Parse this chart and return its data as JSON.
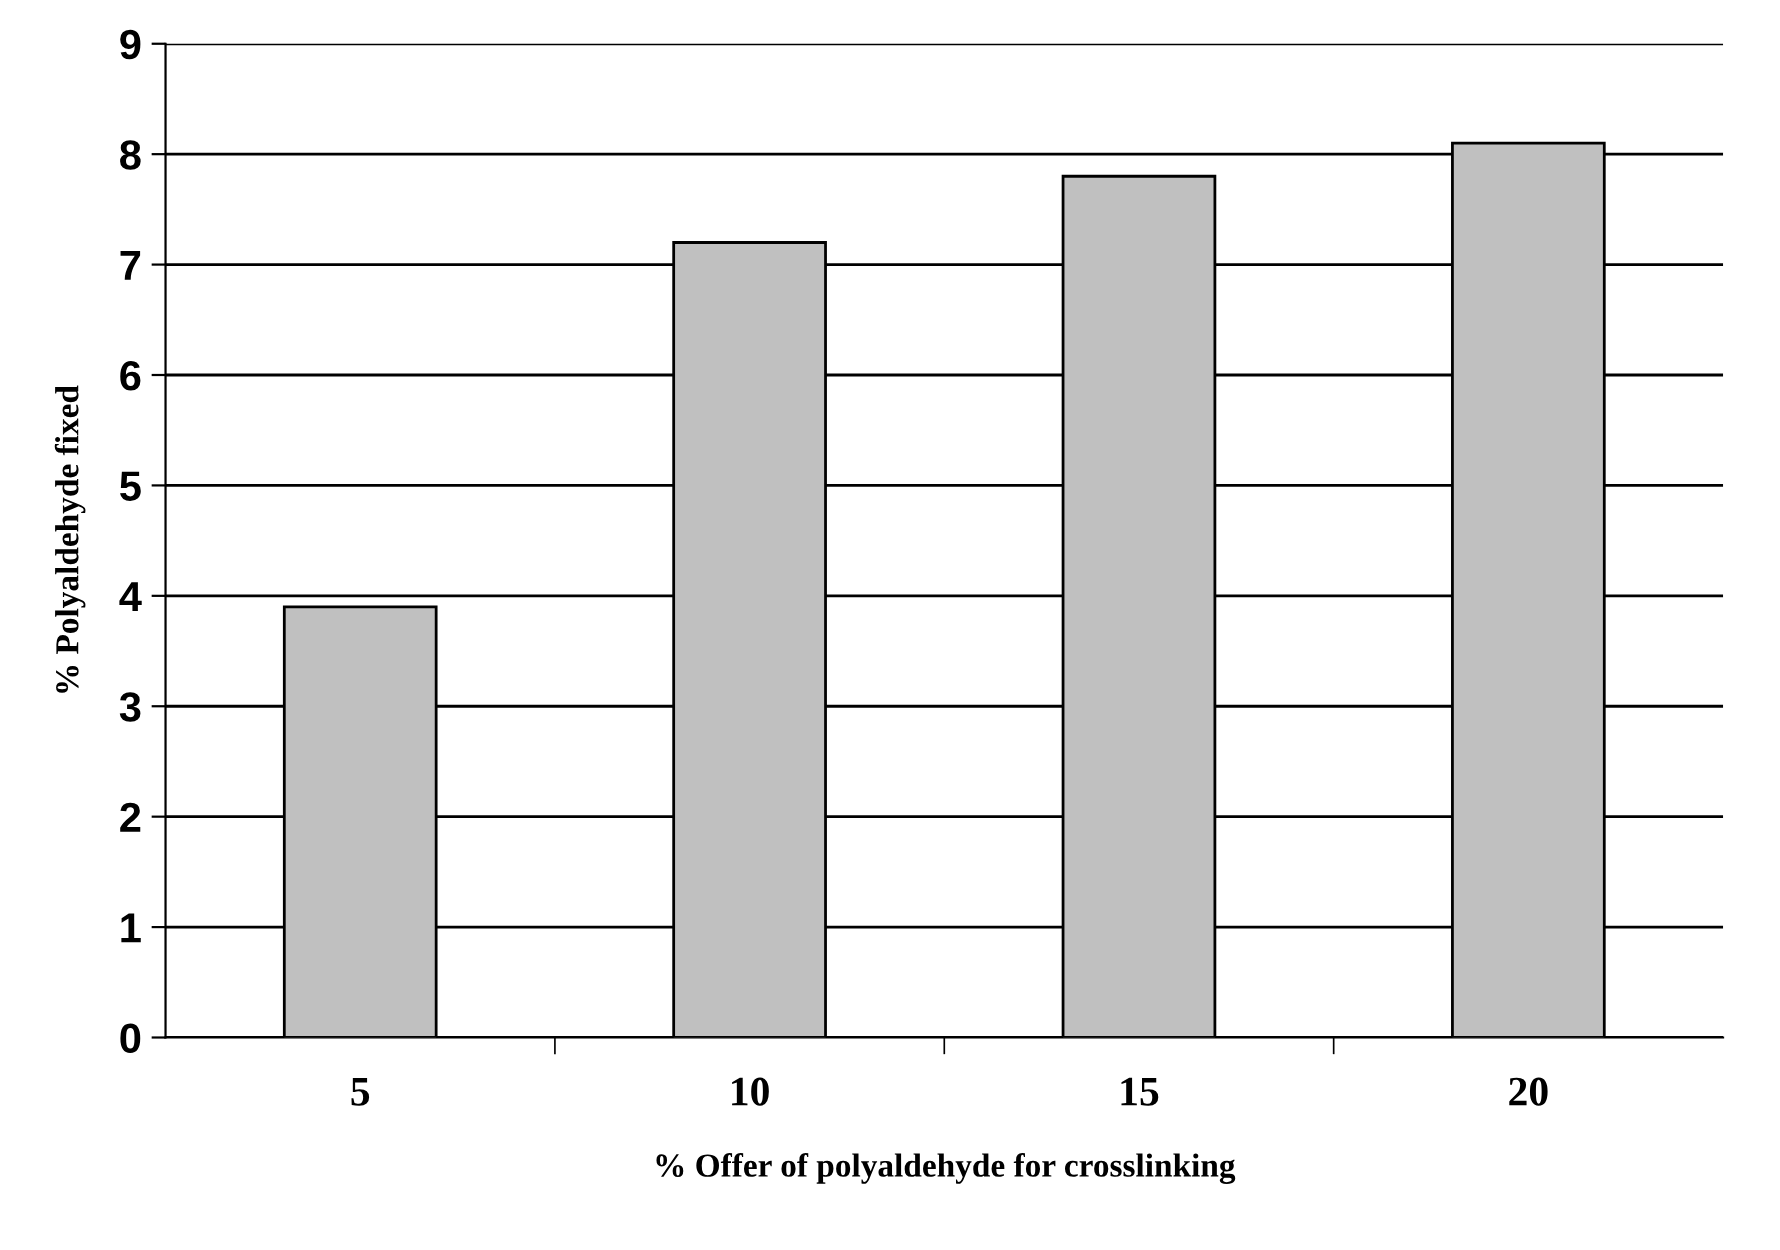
{
  "chart_data": {
    "type": "bar",
    "xlabel": "% Offer of polyaldehyde for crosslinking",
    "ylabel": "% Polyaldehyde fixed",
    "categories": [
      "5",
      "10",
      "15",
      "20"
    ],
    "values": [
      3.9,
      7.2,
      7.8,
      8.1
    ],
    "color": "#c0c0c0",
    "ylim": [
      0,
      9
    ],
    "yticks": [
      0,
      1,
      2,
      3,
      4,
      5,
      6,
      7,
      8,
      9
    ],
    "grid": "y",
    "legend": false
  }
}
